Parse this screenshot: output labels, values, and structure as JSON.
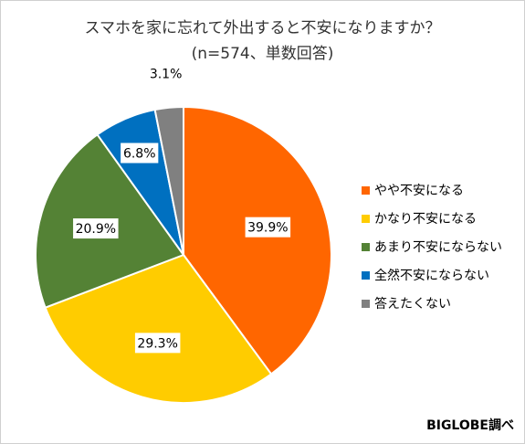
{
  "chart_data": {
    "type": "pie",
    "title": "スマホを家に忘れて外出すると不安になりますか？",
    "subtitle": "(n=574、単数回答)",
    "start_angle_deg": 90,
    "direction": "clockwise",
    "legend_position": "right",
    "slices": [
      {
        "label": "やや不安になる",
        "value": 39.9,
        "display": "39.9%",
        "color": "#FF6600"
      },
      {
        "label": "かなり不安になる",
        "value": 29.3,
        "display": "29.3%",
        "color": "#FFCC00"
      },
      {
        "label": "あまり不安にならない",
        "value": 20.9,
        "display": "20.9%",
        "color": "#548235"
      },
      {
        "label": "全然不安にならない",
        "value": 6.8,
        "display": "6.8%",
        "color": "#0070C0"
      },
      {
        "label": "答えたくない",
        "value": 3.1,
        "display": "3.1%",
        "color": "#808080"
      }
    ]
  },
  "credit": "BIGLOBE調べ"
}
